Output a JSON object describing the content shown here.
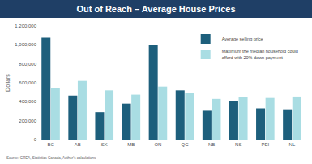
{
  "chart_data": {
    "type": "bar",
    "title": "Out of Reach – Average House Prices",
    "y_label": "Dollars",
    "source": "Source: CREA, Statistics Canada, Author's calculations",
    "categories": [
      "BC",
      "AB",
      "SK",
      "MB",
      "ON",
      "QC",
      "NB",
      "NS",
      "PEI",
      "NL"
    ],
    "series": [
      {
        "name": "Average selling price",
        "color": "#1d5f7c",
        "values": [
          1075000,
          465000,
          290000,
          380000,
          1000000,
          520000,
          305000,
          410000,
          330000,
          320000
        ]
      },
      {
        "name": "Maximum the median household could afford with 20% down payment",
        "color": "#a9dde3",
        "values": [
          540000,
          620000,
          520000,
          475000,
          560000,
          490000,
          430000,
          450000,
          440000,
          455000
        ]
      }
    ],
    "ylim": [
      0,
      1200000
    ],
    "yticks": [
      0,
      {
        "value": 200000,
        "label": "200,000"
      },
      {
        "value": 400000,
        "label": "400,000"
      },
      {
        "value": 600000,
        "label": "600,000"
      },
      {
        "value": 800000,
        "label": "800,000"
      },
      {
        "value": 1000000,
        "label": "1,000,000"
      },
      {
        "value": 1200000,
        "label": "1,200,000"
      }
    ],
    "grid": false,
    "legend": "top right"
  }
}
